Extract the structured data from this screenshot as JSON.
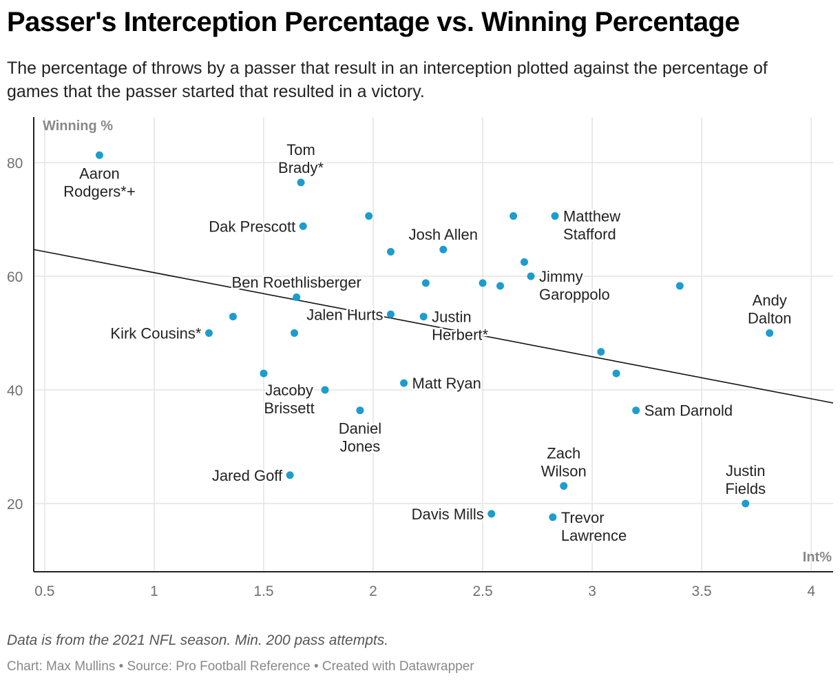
{
  "header": {
    "title": "Passer's Interception Percentage vs. Winning Percentage",
    "subtitle": "The percentage of throws by a passer that result in an interception plotted against the percentage of games that the passer started that resulted in a victory."
  },
  "footer": {
    "notes": "Data is from the 2021 NFL season. Min. 200 pass attempts.",
    "byline": "Chart: Max Mullins • Source: Pro Football Reference • Created with Datawrapper"
  },
  "colors": {
    "point": "#1d9ccd",
    "trendline": "#111111",
    "grid": "#e3e3e3",
    "axis": "#222222"
  },
  "chart_data": {
    "type": "scatter",
    "xlabel": "Int%",
    "ylabel": "Winning %",
    "xlim": [
      0.45,
      4.1
    ],
    "ylim": [
      8,
      88
    ],
    "xticks": [
      0.5,
      1,
      1.5,
      2,
      2.5,
      3,
      3.5,
      4
    ],
    "xtick_labels": [
      "0.5",
      "1",
      "1.5",
      "2",
      "2.5",
      "3",
      "3.5",
      "4"
    ],
    "yticks": [
      20,
      40,
      60,
      80
    ],
    "ytick_labels": [
      "20",
      "40",
      "60",
      "80"
    ],
    "grid": true,
    "trendline": {
      "x": [
        0.45,
        4.1
      ],
      "y": [
        64.7,
        37.7
      ]
    },
    "points": [
      {
        "x": 0.75,
        "y": 81.3,
        "label": "Aaron\nRodgers*+",
        "pos": "below"
      },
      {
        "x": 1.67,
        "y": 76.5,
        "label": "Tom\nBrady*",
        "pos": "above"
      },
      {
        "x": 1.68,
        "y": 68.8,
        "label": "Dak Prescott",
        "pos": "left"
      },
      {
        "x": 1.98,
        "y": 70.6,
        "label": ""
      },
      {
        "x": 2.08,
        "y": 64.3,
        "label": ""
      },
      {
        "x": 2.32,
        "y": 64.7,
        "label": "Josh Allen",
        "pos": "above"
      },
      {
        "x": 2.64,
        "y": 70.6,
        "label": ""
      },
      {
        "x": 2.83,
        "y": 70.6,
        "label": "Matthew\nStafford",
        "pos": "right"
      },
      {
        "x": 2.69,
        "y": 62.5,
        "label": ""
      },
      {
        "x": 2.72,
        "y": 60.0,
        "label": "Jimmy\nGaroppolo",
        "pos": "right"
      },
      {
        "x": 2.24,
        "y": 58.8,
        "label": ""
      },
      {
        "x": 2.5,
        "y": 58.8,
        "label": ""
      },
      {
        "x": 2.58,
        "y": 58.3,
        "label": ""
      },
      {
        "x": 3.4,
        "y": 58.3,
        "label": ""
      },
      {
        "x": 1.65,
        "y": 56.3,
        "label": "Ben Roethlisberger",
        "pos": "above"
      },
      {
        "x": 2.08,
        "y": 53.3,
        "label": "Jalen Hurts",
        "pos": "left"
      },
      {
        "x": 2.23,
        "y": 52.9,
        "label": "Justin\nHerbert*",
        "pos": "right"
      },
      {
        "x": 1.36,
        "y": 52.9,
        "label": ""
      },
      {
        "x": 1.25,
        "y": 50.0,
        "label": "Kirk Cousins*",
        "pos": "left"
      },
      {
        "x": 1.64,
        "y": 50.0,
        "label": ""
      },
      {
        "x": 3.81,
        "y": 50.0,
        "label": "Andy\nDalton",
        "pos": "above"
      },
      {
        "x": 3.04,
        "y": 46.7,
        "label": ""
      },
      {
        "x": 3.11,
        "y": 42.9,
        "label": ""
      },
      {
        "x": 1.5,
        "y": 42.9,
        "label": ""
      },
      {
        "x": 2.14,
        "y": 41.2,
        "label": "Matt Ryan",
        "pos": "right"
      },
      {
        "x": 1.78,
        "y": 40.0,
        "label": "Jacoby\nBrissett",
        "pos": "belowleft"
      },
      {
        "x": 1.94,
        "y": 36.4,
        "label": "Daniel\nJones",
        "pos": "below"
      },
      {
        "x": 3.2,
        "y": 36.4,
        "label": "Sam Darnold",
        "pos": "right"
      },
      {
        "x": 1.62,
        "y": 25.0,
        "label": "Jared Goff",
        "pos": "left"
      },
      {
        "x": 2.87,
        "y": 23.1,
        "label": "Zach\nWilson",
        "pos": "above"
      },
      {
        "x": 3.7,
        "y": 20.0,
        "label": "Justin\nFields",
        "pos": "above"
      },
      {
        "x": 2.54,
        "y": 18.2,
        "label": "Davis Mills",
        "pos": "left"
      },
      {
        "x": 2.82,
        "y": 17.6,
        "label": "Trevor\nLawrence",
        "pos": "right"
      }
    ]
  }
}
